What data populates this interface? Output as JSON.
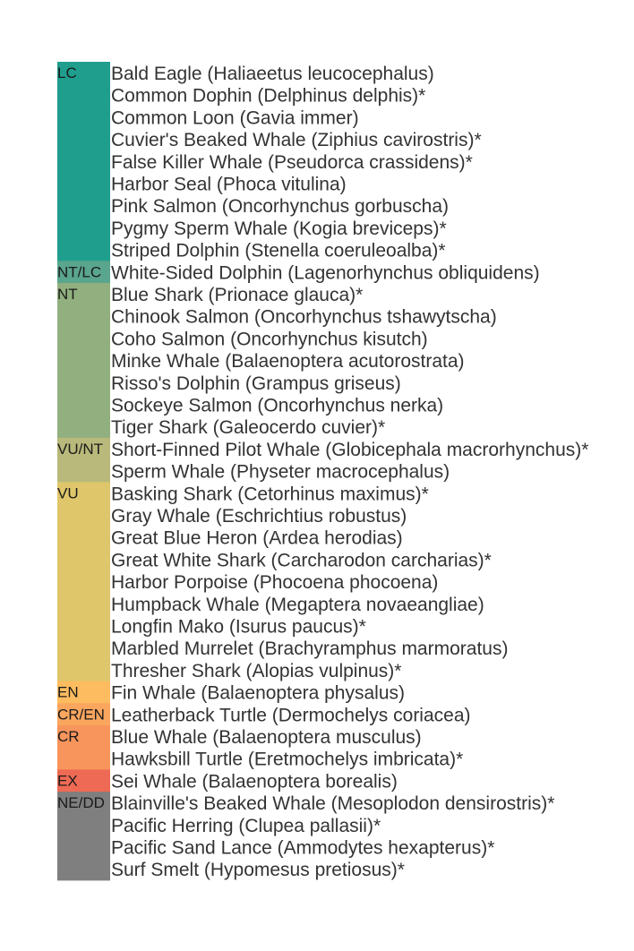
{
  "chart_data": {
    "type": "table",
    "title": "",
    "groups": [
      {
        "category": "LC",
        "color": "#1f9e8e",
        "species": [
          "Bald Eagle (Haliaeetus leucocephalus)",
          "Common Dophin (Delphinus delphis)*",
          "Common Loon (Gavia immer)",
          "Cuvier's Beaked Whale (Ziphius cavirostris)*",
          "False Killer Whale (Pseudorca crassidens)*",
          "Harbor Seal (Phoca vitulina)",
          "Pink Salmon (Oncorhynchus gorbuscha)",
          "Pygmy Sperm Whale (Kogia breviceps)*",
          "Striped Dolphin (Stenella coeruleoalba)*"
        ]
      },
      {
        "category": "NT/LC",
        "color": "#5aa58d",
        "species": [
          "White-Sided Dolphin (Lagenorhynchus obliquidens)"
        ]
      },
      {
        "category": "NT",
        "color": "#92b07f",
        "species": [
          "Blue Shark (Prionace glauca)*",
          "Chinook Salmon (Oncorhynchus tshawytscha)",
          "Coho Salmon (Oncorhynchus kisutch)",
          "Minke Whale (Balaenoptera acutorostrata)",
          "Risso's Dolphin (Grampus griseus)",
          "Sockeye Salmon (Oncorhynchus nerka)",
          "Tiger Shark (Galeocerdo cuvier)*"
        ]
      },
      {
        "category": "VU/NT",
        "color": "#b8b97a",
        "species": [
          "Short-Finned Pilot Whale (Globicephala macrorhynchus)*",
          "Sperm Whale (Physeter macrocephalus)"
        ]
      },
      {
        "category": "VU",
        "color": "#dfc66b",
        "species": [
          "Basking Shark (Cetorhinus maximus)*",
          "Gray Whale (Eschrichtius robustus)",
          "Great Blue Heron (Ardea herodias)",
          "Great White Shark (Carcharodon carcharias)*",
          "Harbor Porpoise (Phocoena phocoena)",
          "Humpback Whale (Megaptera novaeangliae)",
          "Longfin Mako (Isurus paucus)*",
          "Marbled Murrelet (Brachyramphus marmoratus)",
          "Thresher Shark (Alopias vulpinus)*"
        ]
      },
      {
        "category": "EN",
        "color": "#fdbc60",
        "species": [
          "Fin Whale (Balaenoptera physalus)"
        ]
      },
      {
        "category": "CR/EN",
        "color": "#fba65e",
        "species": [
          "Leatherback Turtle (Dermochelys coriacea)"
        ]
      },
      {
        "category": "CR",
        "color": "#f8955c",
        "species": [
          "Blue Whale (Balaenoptera musculus)",
          "Hawksbill Turtle (Eretmochelys imbricata)*"
        ]
      },
      {
        "category": "EX",
        "color": "#ee6a54",
        "species": [
          "Sei Whale (Balaenoptera borealis)"
        ]
      },
      {
        "category": "NE/DD",
        "color": "#7f7f7f",
        "species": [
          "Blainville's Beaked Whale (Mesoplodon densirostris)*",
          "Pacific Herring (Clupea pallasii)*",
          "Pacific Sand Lance (Ammodytes hexapterus)*",
          "Surf Smelt (Hypomesus pretiosus)*"
        ]
      }
    ]
  }
}
